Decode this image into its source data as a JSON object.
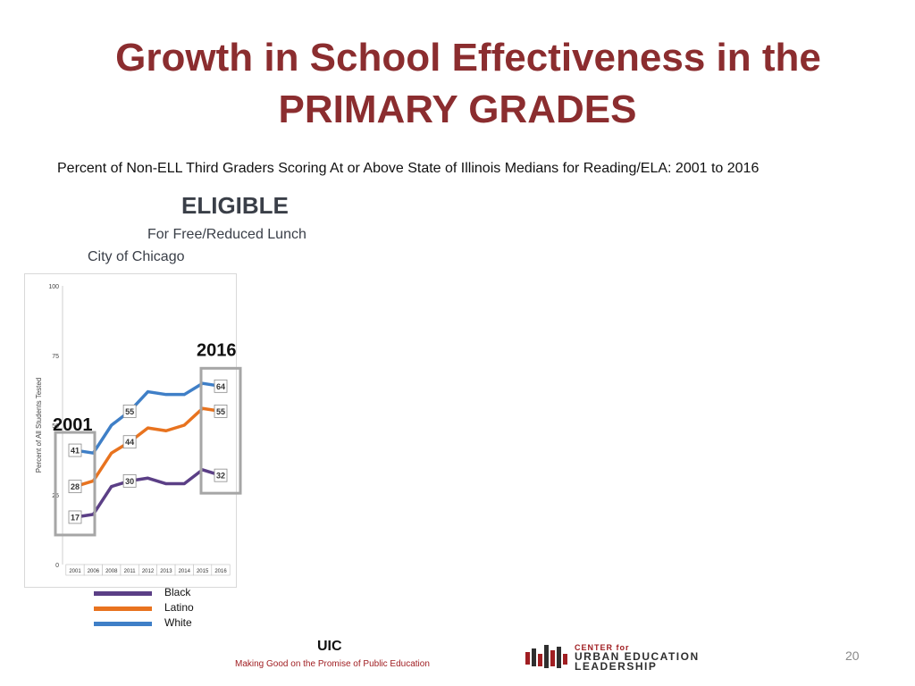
{
  "title_line1": "Growth in School Effectiveness in the",
  "title_line2": "PRIMARY GRADES",
  "subtitle": "Percent of Non-ELL Third Graders Scoring At or Above State of Illinois Medians for Reading/ELA:  2001 to 2016",
  "group_label": "ELIGIBLE",
  "group_sublabel": "For Free/Reduced Lunch",
  "region_label": "City of Chicago",
  "footer": {
    "org": "UIC",
    "tagline": "Making Good on the Promise of Public Education",
    "logo_line1": "CENTER for",
    "logo_line2": "URBAN EDUCATION",
    "logo_line3": "LEADERSHIP"
  },
  "page_number": "20",
  "colors": {
    "title": "#8b2d2f",
    "black_series": "#5b3f86",
    "latino_series": "#e8731f",
    "white_series": "#3f7fc7",
    "highlight_box": "#a6a6a6"
  },
  "chart_data": {
    "type": "line",
    "ylabel": "Percent of All Students Tested",
    "ylim": [
      0,
      100
    ],
    "yticks": [
      0,
      25,
      50,
      75,
      100
    ],
    "categories": [
      "2001",
      "2006",
      "2008",
      "2011",
      "2012",
      "2013",
      "2014",
      "2015",
      "2016"
    ],
    "series": [
      {
        "name": "Black",
        "color": "#5b3f86",
        "values": [
          17,
          18,
          28,
          30,
          31,
          29,
          29,
          34,
          32
        ]
      },
      {
        "name": "Latino",
        "color": "#e8731f",
        "values": [
          28,
          30,
          40,
          44,
          49,
          48,
          50,
          56,
          55
        ]
      },
      {
        "name": "White",
        "color": "#3f7fc7",
        "values": [
          41,
          40,
          50,
          55,
          62,
          61,
          61,
          65,
          64
        ]
      }
    ],
    "data_labels": [
      {
        "series": "Black",
        "index": 0,
        "text": "17"
      },
      {
        "series": "Latino",
        "index": 0,
        "text": "28"
      },
      {
        "series": "White",
        "index": 0,
        "text": "41"
      },
      {
        "series": "Black",
        "index": 3,
        "text": "30"
      },
      {
        "series": "Latino",
        "index": 3,
        "text": "44"
      },
      {
        "series": "White",
        "index": 3,
        "text": "55"
      },
      {
        "series": "Black",
        "index": 8,
        "text": "32"
      },
      {
        "series": "Latino",
        "index": 8,
        "text": "55"
      },
      {
        "series": "White",
        "index": 8,
        "text": "64"
      }
    ],
    "highlights": [
      {
        "label": "2001",
        "index": 0
      },
      {
        "label": "2016",
        "index": 8
      }
    ]
  }
}
